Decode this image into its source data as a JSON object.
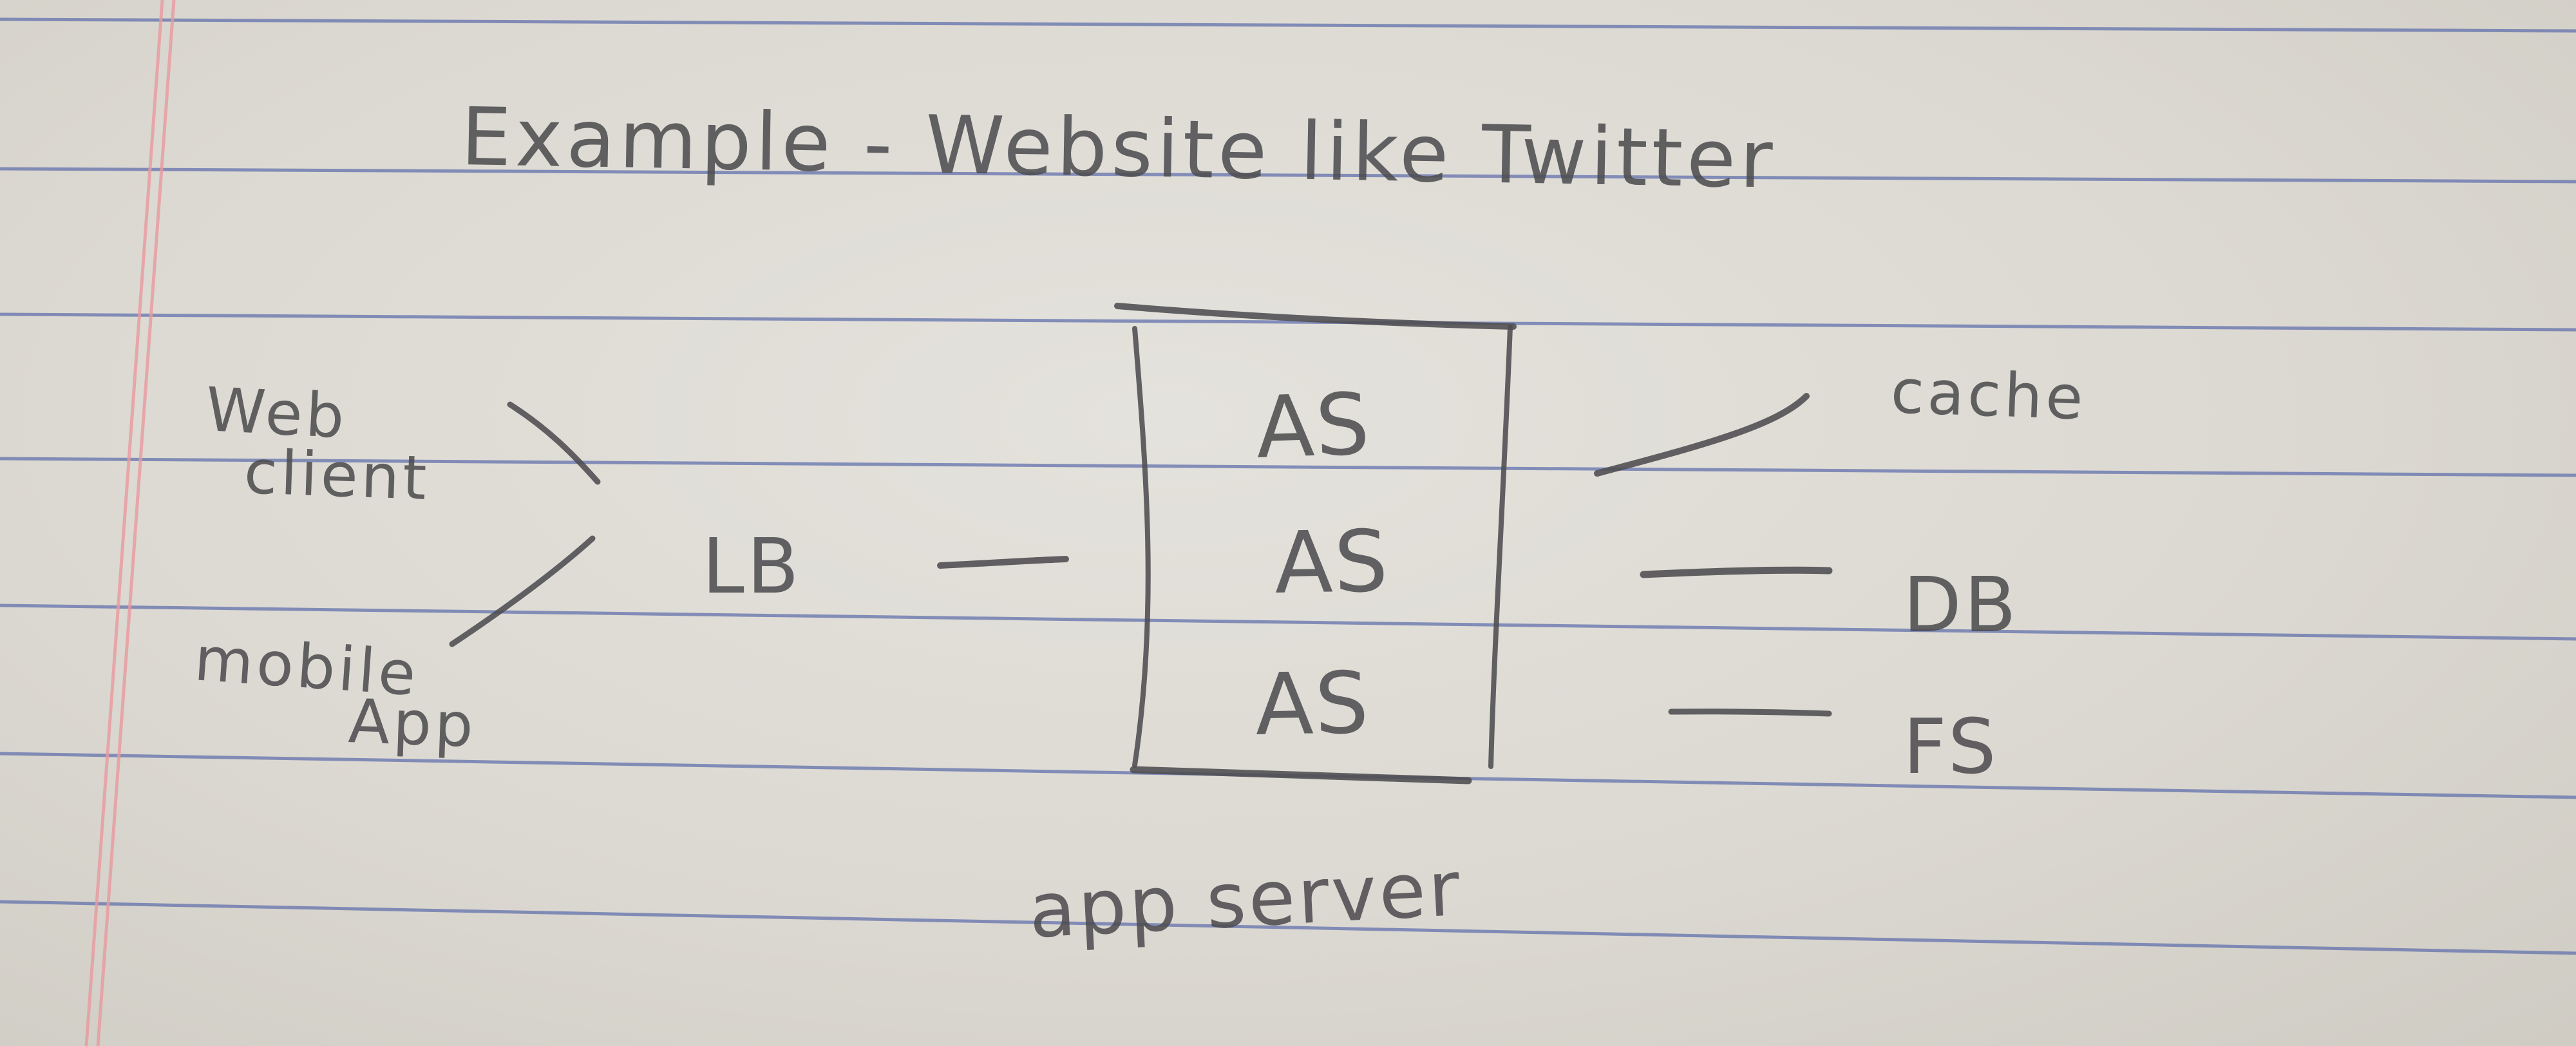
{
  "title": "Example - Website like Twitter",
  "clients": {
    "web": [
      "Web",
      "client"
    ],
    "mobile": [
      "mobile",
      "App"
    ]
  },
  "load_balancer": "LB",
  "app_servers": [
    "AS",
    "AS",
    "AS"
  ],
  "app_server_caption": "app server",
  "backends": {
    "cache": "cache",
    "db": "DB",
    "fs": "FS"
  },
  "colors": {
    "paper": "#dcd9d2",
    "ruled_line": "#5e6da8",
    "margin_line": "#e7a0a4",
    "pencil": "#4d4c50"
  }
}
